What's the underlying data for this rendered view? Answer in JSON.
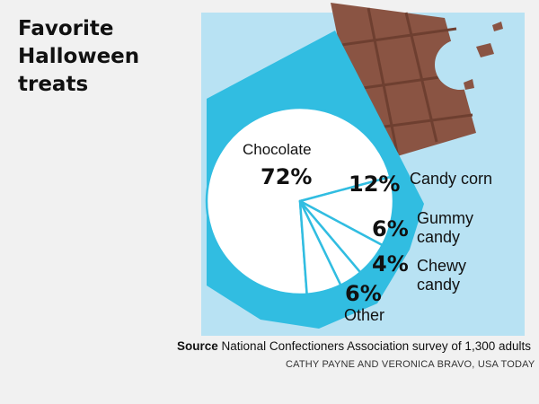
{
  "title_lines": [
    "Favorite",
    "Halloween",
    "treats"
  ],
  "chart_data": {
    "type": "pie",
    "title": "Favorite Halloween treats",
    "unit": "%",
    "slices": [
      {
        "name": "Chocolate",
        "value": 72,
        "label": "72%",
        "name_lines": [
          "Chocolate"
        ]
      },
      {
        "name": "Candy corn",
        "value": 12,
        "label": "12%",
        "name_lines": [
          "Candy corn"
        ]
      },
      {
        "name": "Gummy candy",
        "value": 6,
        "label": "6%",
        "name_lines": [
          "Gummy",
          "candy"
        ]
      },
      {
        "name": "Chewy candy",
        "value": 4,
        "label": "4%",
        "name_lines": [
          "Chewy",
          "candy"
        ]
      },
      {
        "name": "Other",
        "value": 6,
        "label": "6%",
        "name_lines": [
          "Other"
        ]
      }
    ]
  },
  "source": {
    "label": "Source",
    "text": "National Confectioners Association survey of 1,300 adults"
  },
  "credit": "CATHY PAYNE AND VERONICA BRAVO, USA TODAY",
  "colors": {
    "background": "#f1f1f1",
    "panel": "#b8e2f3",
    "wrapper": "#31bde1",
    "chocolate": "#8a5443",
    "slice_fill": "#ffffff",
    "slice_line": "#31bde1",
    "text": "#111111"
  }
}
